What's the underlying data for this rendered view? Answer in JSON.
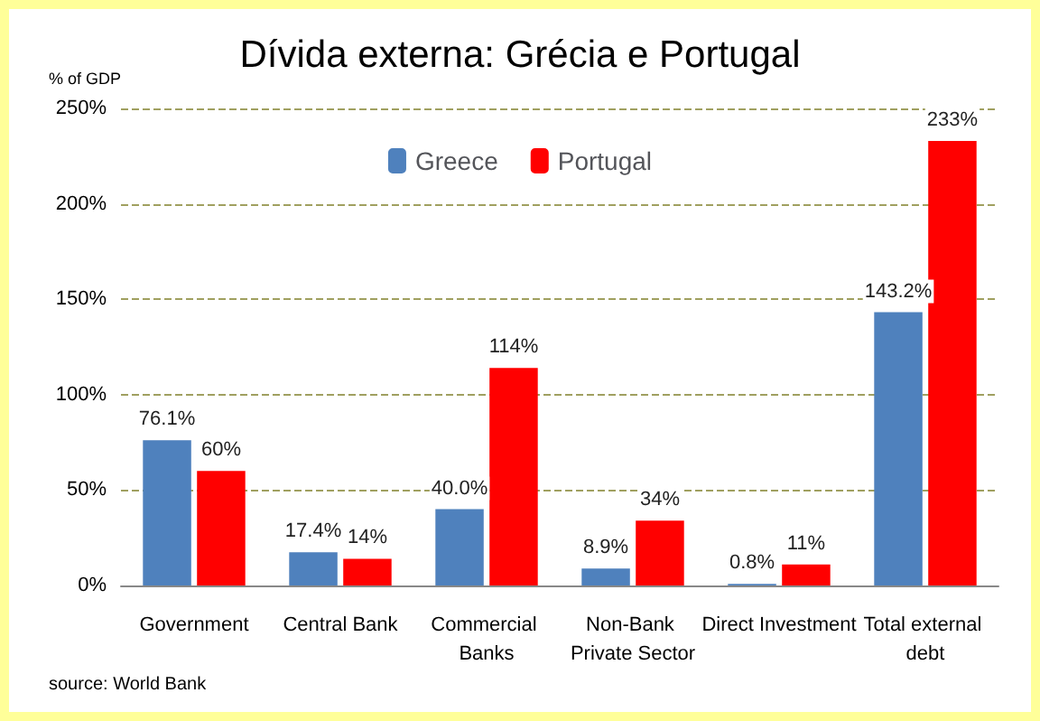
{
  "chart_data": {
    "type": "bar",
    "title": "Dívida externa: Grécia e Portugal",
    "ylabel": "% of GDP",
    "categories": [
      "Government",
      "Central Bank",
      "Commercial Banks",
      "Non-Bank Private Sector",
      "Direct Investment",
      "Total external debt"
    ],
    "series": [
      {
        "name": "Greece",
        "color": "#4f81bd",
        "values": [
          76.1,
          17.4,
          40.0,
          8.9,
          0.8,
          143.2
        ],
        "value_labels": [
          "76.1%",
          "17.4%",
          "40.0%",
          "8.9%",
          "0.8%",
          "143.2%"
        ]
      },
      {
        "name": "Portugal",
        "color": "#ff0000",
        "values": [
          60,
          14,
          114,
          34,
          11,
          233
        ],
        "value_labels": [
          "60%",
          "14%",
          "114%",
          "34%",
          "11%",
          "233%"
        ]
      }
    ],
    "ylim": [
      0,
      250
    ],
    "yticks": [
      {
        "value": 0,
        "label": "0%"
      },
      {
        "value": 50,
        "label": "50%"
      },
      {
        "value": 100,
        "label": "100%"
      },
      {
        "value": 150,
        "label": "150%"
      },
      {
        "value": 200,
        "label": "200%"
      },
      {
        "value": 250,
        "label": "250%"
      }
    ],
    "grid": "y",
    "legend": "top",
    "annotations": [
      "source: World Bank"
    ]
  }
}
